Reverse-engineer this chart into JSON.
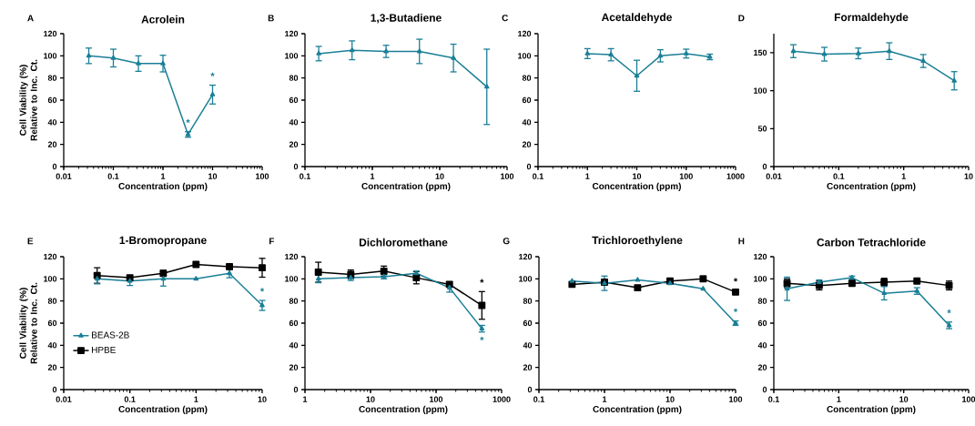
{
  "chart_data": [
    {
      "type": "line",
      "title": "Acrolein",
      "xlabel": "Concentration (ppm)",
      "ylabel": "Cell Viability (%) Relative to Inc. Ct.",
      "log": "x",
      "xlim": [
        0.01,
        100
      ],
      "xticks": [
        0.01,
        0.1,
        1,
        10,
        100
      ],
      "ylim": [
        0,
        120
      ],
      "yticks": [
        0,
        20,
        40,
        60,
        80,
        100,
        120
      ],
      "x": [
        0.032,
        0.1,
        0.32,
        1,
        3.2,
        10
      ],
      "series": [
        {
          "color": "#1a7f96",
          "marker": "triangle",
          "values": [
            100,
            98,
            93,
            93,
            29,
            65
          ],
          "errors": [
            7,
            8,
            7,
            7.5,
            2.5,
            8.5
          ]
        }
      ],
      "annotations": [
        "A",
        {
          "text": "*",
          "x": 3.2,
          "y": 29
        },
        {
          "text": "*",
          "x": 10,
          "y": 65
        }
      ]
    },
    {
      "type": "line",
      "title": "1,3-Butadiene",
      "xlabel": "Concentration (ppm)",
      "log": "x",
      "xlim": [
        0.1,
        100
      ],
      "xticks": [
        0.1,
        1,
        10,
        100
      ],
      "ylim": [
        0,
        120
      ],
      "yticks": [
        0,
        20,
        40,
        60,
        80,
        100,
        120
      ],
      "x": [
        0.16,
        0.5,
        1.6,
        5,
        16,
        50
      ],
      "series": [
        {
          "color": "#1a7f96",
          "marker": "triangle",
          "values": [
            102,
            105,
            104,
            104,
            98,
            72
          ],
          "errors": [
            6.5,
            8.5,
            5.5,
            11,
            12.5,
            34
          ]
        }
      ],
      "annotations": [
        "B"
      ]
    },
    {
      "type": "line",
      "title": "Acetaldehyde",
      "xlabel": "Concentration (ppm)",
      "log": "x",
      "xlim": [
        0.1,
        1000
      ],
      "xticks": [
        0.1,
        1,
        10,
        100,
        1000
      ],
      "ylim": [
        0,
        120
      ],
      "yticks": [
        0,
        20,
        40,
        60,
        80,
        100,
        120
      ],
      "x": [
        1,
        3,
        10,
        30,
        100,
        300
      ],
      "series": [
        {
          "color": "#1a7f96",
          "marker": "triangle",
          "values": [
            102,
            101,
            82,
            100,
            102,
            99
          ],
          "errors": [
            4.5,
            5.5,
            14,
            5.5,
            4,
            2.5
          ]
        }
      ],
      "annotations": [
        "C"
      ]
    },
    {
      "type": "line",
      "title": "Formaldehyde",
      "xlabel": "Concentration (ppm)",
      "log": "x",
      "xlim": [
        0.01,
        10
      ],
      "xticks": [
        0.01,
        0.1,
        1,
        10
      ],
      "ylim": [
        0,
        175
      ],
      "yticks": [
        0,
        50,
        100,
        150
      ],
      "x": [
        0.02,
        0.06,
        0.2,
        0.6,
        2,
        6
      ],
      "series": [
        {
          "color": "#1a7f96",
          "marker": "triangle",
          "values": [
            152,
            148,
            149,
            152,
            139,
            113
          ],
          "errors": [
            8.5,
            9,
            7,
            11,
            8.5,
            12
          ]
        }
      ],
      "annotations": [
        "D"
      ]
    },
    {
      "type": "line",
      "title": "1-Bromopropane",
      "xlabel": "Concentration (ppm)",
      "ylabel": "Cell Viability (%) Relative to Inc. Ct.",
      "log": "x",
      "xlim": [
        0.01,
        10
      ],
      "xticks": [
        0.01,
        0.1,
        1,
        10
      ],
      "ylim": [
        0,
        120
      ],
      "yticks": [
        0,
        20,
        40,
        60,
        80,
        100,
        120
      ],
      "x": [
        0.032,
        0.1,
        0.32,
        1,
        3.2,
        10
      ],
      "legend": "left",
      "series": [
        {
          "name": "BEAS-2B",
          "color": "#1a7f96",
          "marker": "triangle",
          "values": [
            100,
            98,
            100,
            100,
            105,
            76
          ],
          "errors": [
            4.5,
            4,
            6.5,
            null,
            4,
            4.5
          ]
        },
        {
          "name": "HPBE",
          "color": "#000000",
          "marker": "square",
          "values": [
            103,
            101,
            105,
            113,
            111,
            110
          ],
          "errors": [
            7,
            2,
            2.5,
            1.5,
            2,
            8.5
          ]
        }
      ],
      "annotations": [
        "E",
        {
          "text": "*",
          "x": 10,
          "y": 76
        }
      ]
    },
    {
      "type": "line",
      "title": "Dichloromethane",
      "xlabel": "Concentration (ppm)",
      "log": "x",
      "xlim": [
        1,
        1000
      ],
      "xticks": [
        1,
        10,
        100,
        1000
      ],
      "ylim": [
        0,
        120
      ],
      "yticks": [
        0,
        20,
        40,
        60,
        80,
        100,
        120
      ],
      "x": [
        1.6,
        5,
        16,
        50,
        160,
        500
      ],
      "series": [
        {
          "color": "#1a7f96",
          "marker": "triangle",
          "values": [
            100,
            101,
            102,
            105,
            92,
            55
          ],
          "errors": [
            3.5,
            2.5,
            2,
            2,
            4,
            3
          ]
        },
        {
          "color": "#000000",
          "marker": "square",
          "values": [
            106,
            104,
            107,
            101,
            95,
            76
          ],
          "errors": [
            9,
            4,
            4.5,
            5.5,
            2,
            12.5
          ]
        }
      ],
      "annotations": [
        "F",
        {
          "text": "*",
          "x": 500,
          "y": 76
        },
        {
          "text": "*",
          "x": 500,
          "y": 55
        }
      ]
    },
    {
      "type": "line",
      "title": "Trichloroethylene",
      "xlabel": "Concentration (ppm)",
      "log": "x",
      "xlim": [
        0.1,
        100
      ],
      "xticks": [
        0.1,
        1,
        10,
        100
      ],
      "ylim": [
        0,
        120
      ],
      "yticks": [
        0,
        20,
        40,
        60,
        80,
        100,
        120
      ],
      "x": [
        0.32,
        1,
        3.2,
        10,
        32,
        100
      ],
      "series": [
        {
          "color": "#1a7f96",
          "marker": "triangle",
          "values": [
            98,
            96,
            99,
            96,
            91,
            60
          ],
          "errors": [
            null,
            6.5,
            null,
            null,
            null,
            2
          ]
        },
        {
          "color": "#000000",
          "marker": "square",
          "values": [
            95,
            97,
            92,
            98,
            100,
            88
          ],
          "errors": [
            1.5,
            2,
            2,
            null,
            2.5,
            1.5
          ]
        }
      ],
      "annotations": [
        "G",
        {
          "text": "*",
          "x": 100,
          "y": 88
        },
        {
          "text": "*",
          "x": 100,
          "y": 60
        }
      ]
    },
    {
      "type": "line",
      "title": "Carbon Tetrachloride",
      "xlabel": "Concentration (ppm)",
      "log": "x",
      "xlim": [
        0.1,
        100
      ],
      "xticks": [
        0.1,
        1,
        10,
        100
      ],
      "ylim": [
        0,
        120
      ],
      "yticks": [
        0,
        20,
        40,
        60,
        80,
        100,
        120
      ],
      "x": [
        0.16,
        0.5,
        1.6,
        5,
        16,
        50
      ],
      "series": [
        {
          "color": "#1a7f96",
          "marker": "triangle",
          "values": [
            91,
            97,
            101,
            87,
            89,
            58
          ],
          "errors": [
            10.5,
            2,
            1.5,
            6,
            3,
            3
          ]
        },
        {
          "color": "#000000",
          "marker": "square",
          "values": [
            96,
            94,
            96,
            97,
            98,
            94
          ],
          "errors": [
            4,
            4,
            2,
            3.5,
            2,
            4
          ]
        }
      ],
      "annotations": [
        "H",
        {
          "text": "*",
          "x": 50,
          "y": 58
        }
      ]
    }
  ]
}
